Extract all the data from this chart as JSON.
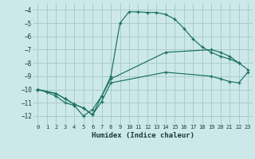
{
  "xlabel": "Humidex (Indice chaleur)",
  "bg_color": "#cce8e8",
  "grid_color": "#aacccc",
  "line_color": "#1a7060",
  "xlim": [
    -0.5,
    23.5
  ],
  "ylim": [
    -12.6,
    -3.5
  ],
  "xticks": [
    0,
    1,
    2,
    3,
    4,
    5,
    6,
    7,
    8,
    9,
    10,
    11,
    12,
    13,
    14,
    15,
    16,
    17,
    18,
    19,
    20,
    21,
    22,
    23
  ],
  "yticks": [
    -12,
    -11,
    -10,
    -9,
    -8,
    -7,
    -6,
    -5,
    -4
  ],
  "line1_x": [
    0,
    1,
    2,
    3,
    4,
    5,
    6,
    7,
    8,
    9,
    10,
    11,
    12,
    13,
    14,
    15,
    16,
    17,
    18,
    19,
    20,
    21,
    22
  ],
  "line1_y": [
    -10.0,
    -10.2,
    -10.5,
    -11.0,
    -11.2,
    -12.0,
    -11.5,
    -10.5,
    -9.0,
    -5.0,
    -4.15,
    -4.15,
    -4.2,
    -4.2,
    -4.35,
    -4.7,
    -5.4,
    -6.2,
    -6.8,
    -7.2,
    -7.5,
    -7.7,
    -8.0
  ],
  "line2_x": [
    0,
    2,
    3,
    4,
    5,
    6,
    7,
    8,
    14,
    19,
    20,
    21,
    22,
    23
  ],
  "line2_y": [
    -10.0,
    -10.3,
    -10.7,
    -11.1,
    -11.4,
    -11.9,
    -10.5,
    -9.2,
    -7.2,
    -7.0,
    -7.2,
    -7.5,
    -8.0,
    -8.5
  ],
  "line3_x": [
    0,
    2,
    3,
    4,
    5,
    6,
    7,
    8,
    14,
    19,
    20,
    21,
    22,
    23
  ],
  "line3_y": [
    -10.0,
    -10.3,
    -10.7,
    -11.1,
    -11.4,
    -11.9,
    -10.9,
    -9.5,
    -8.7,
    -9.0,
    -9.2,
    -9.4,
    -9.5,
    -8.7
  ]
}
